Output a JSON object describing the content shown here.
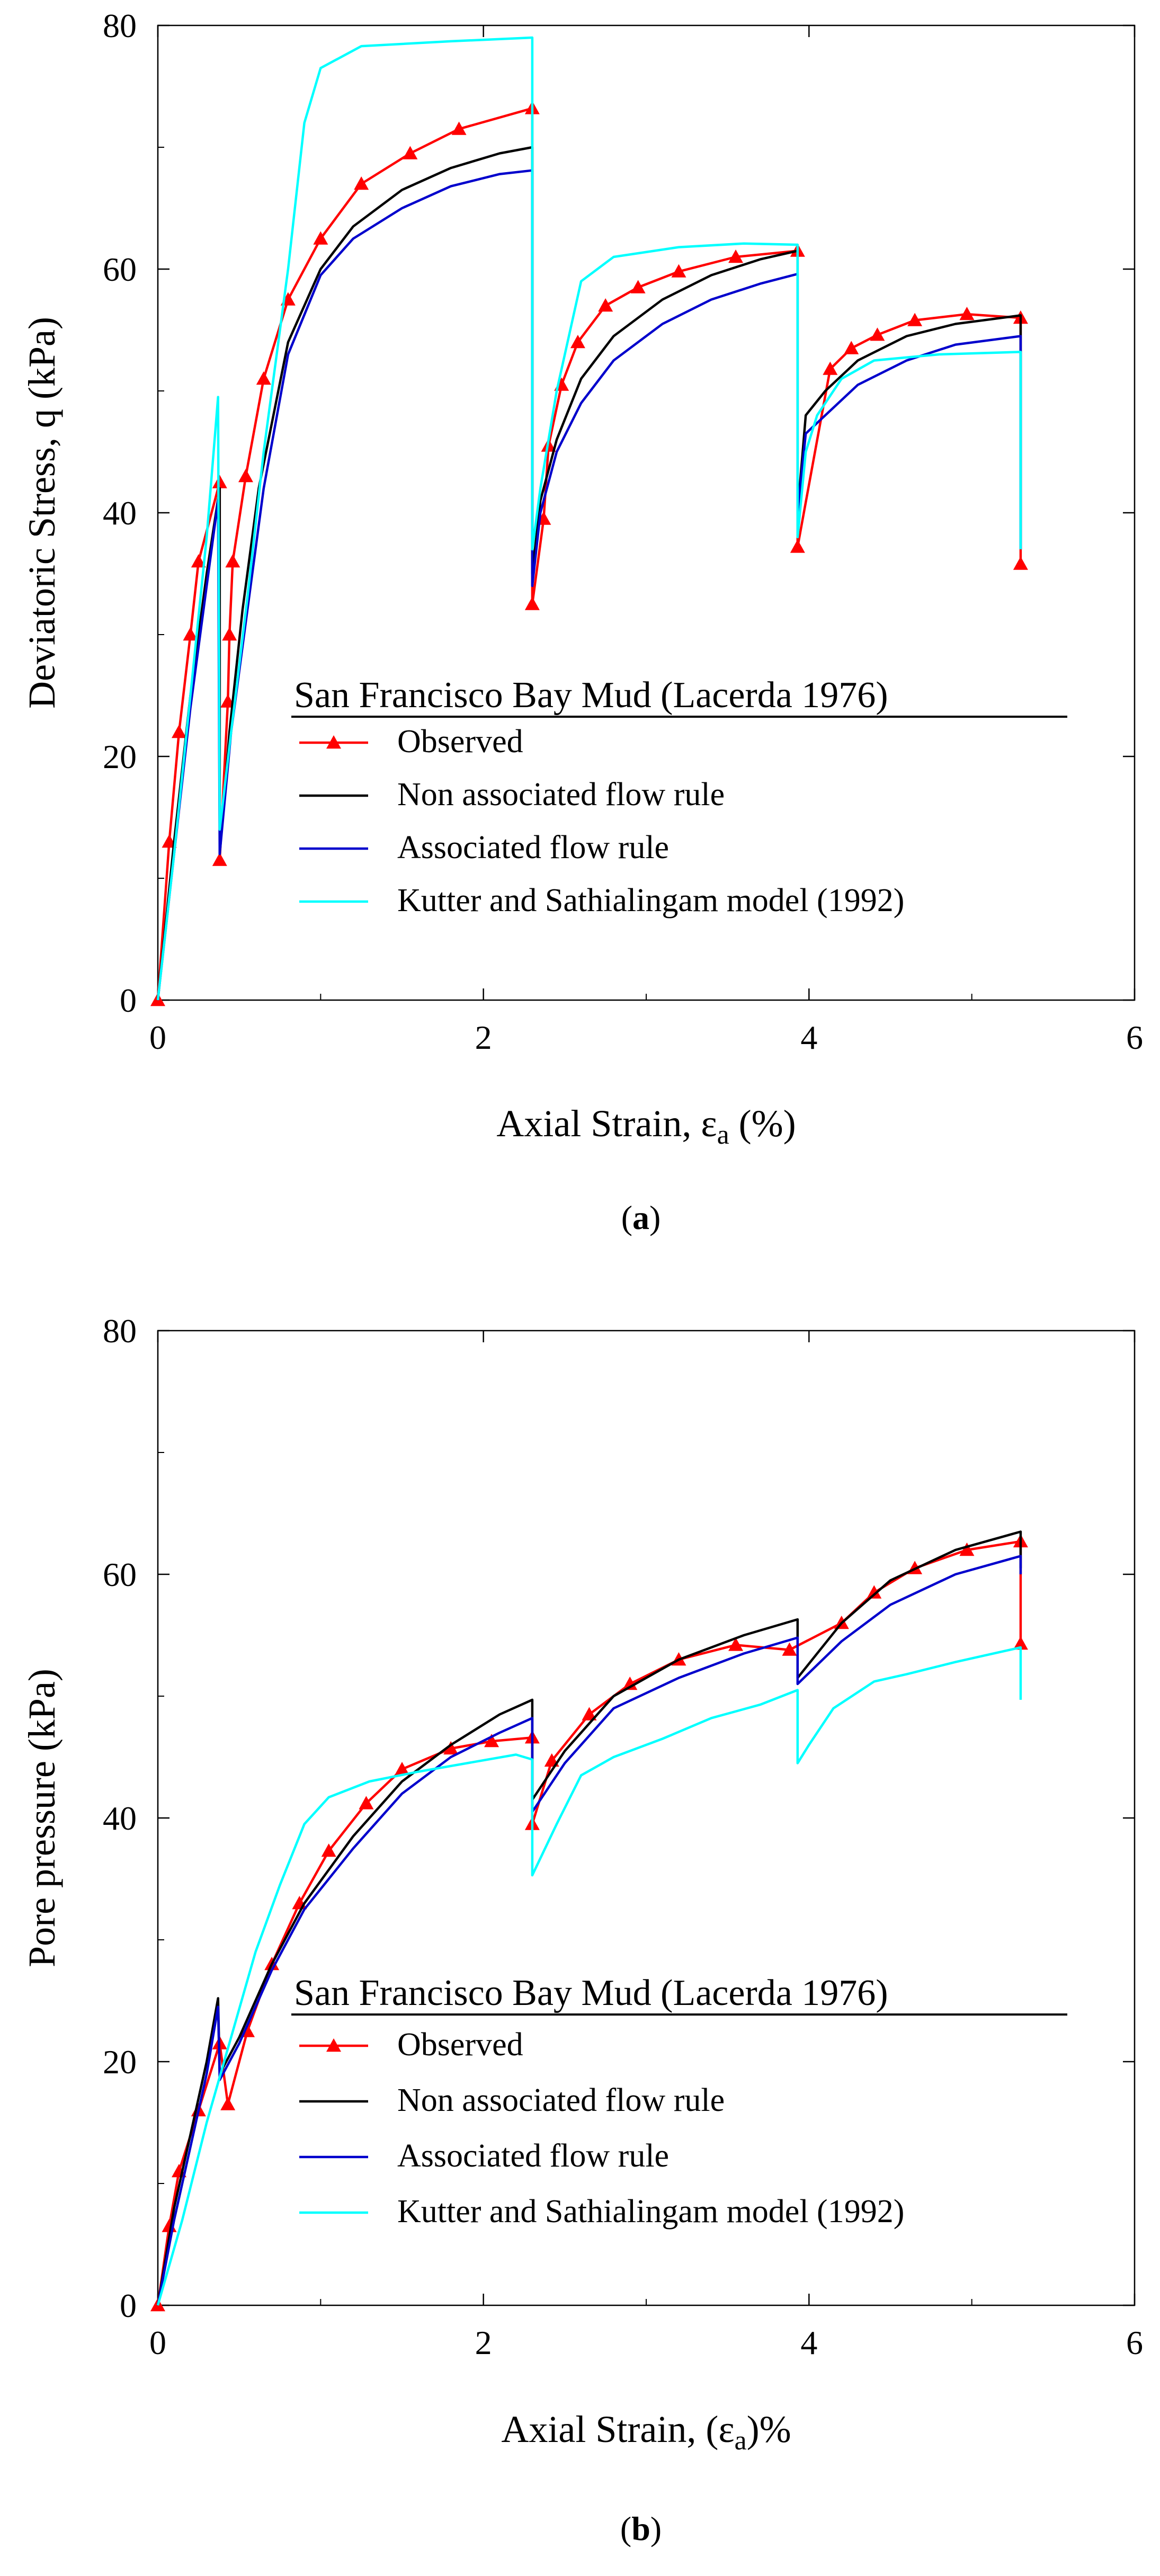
{
  "charts": [
    {
      "id": "a",
      "caption_open": "(",
      "caption_letter": "a",
      "caption_close": ")",
      "ylabel": "Deviatoric Stress, q (kPa)",
      "xlabel_main": "Axial Strain, ε",
      "xlabel_sub": "a",
      "xlabel_tail": " (%)",
      "legend": {
        "title": "San Francisco Bay Mud (Lacerda 1976)",
        "entries": [
          "Observed",
          "Non associated flow rule",
          "Associated flow rule",
          "Kutter and Sathialingam model (1992)"
        ]
      },
      "xticks": [
        "0",
        "2",
        "4",
        "6"
      ],
      "yticks": [
        "0",
        "20",
        "40",
        "60",
        "80"
      ]
    },
    {
      "id": "b",
      "caption_open": "(",
      "caption_letter": "b",
      "caption_close": ")",
      "ylabel": "Pore pressure (kPa)",
      "xlabel_main": "Axial Strain, (ε",
      "xlabel_sub": "a",
      "xlabel_tail": ")%",
      "legend": {
        "title": "San Francisco Bay Mud (Lacerda 1976)",
        "entries": [
          "Observed",
          "Non associated flow rule",
          "Associated flow rule",
          "Kutter and Sathialingam model (1992)"
        ]
      },
      "xticks": [
        "0",
        "2",
        "4",
        "6"
      ],
      "yticks": [
        "0",
        "20",
        "40",
        "60",
        "80"
      ]
    }
  ],
  "chart_data": [
    {
      "type": "line",
      "title": "",
      "xlabel": "Axial Strain, εa (%)",
      "ylabel": "Deviatoric Stress, q (kPa)",
      "xlim": [
        0,
        6
      ],
      "ylim": [
        0,
        80
      ],
      "colors": {
        "observed": "#ff0000",
        "nonassoc": "#000000",
        "assoc": "#0000cc",
        "kutter": "#00ffff"
      },
      "series": [
        {
          "name": "Observed",
          "key": "observed",
          "markers": true,
          "points": [
            [
              0,
              0
            ],
            [
              0.07,
              13
            ],
            [
              0.13,
              22
            ],
            [
              0.2,
              30
            ],
            [
              0.25,
              36
            ],
            [
              0.38,
              42.5
            ],
            [
              0.38,
              11.5
            ],
            [
              0.43,
              24.5
            ],
            [
              0.44,
              30
            ],
            [
              0.46,
              36
            ],
            [
              0.54,
              43
            ],
            [
              0.65,
              51
            ],
            [
              0.8,
              57.5
            ],
            [
              1.0,
              62.5
            ],
            [
              1.25,
              67
            ],
            [
              1.55,
              69.5
            ],
            [
              1.85,
              71.5
            ],
            [
              2.3,
              73.2
            ],
            [
              2.3,
              32.5
            ],
            [
              2.37,
              39.5
            ],
            [
              2.4,
              45.5
            ],
            [
              2.48,
              50.5
            ],
            [
              2.58,
              54
            ],
            [
              2.75,
              57
            ],
            [
              2.95,
              58.5
            ],
            [
              3.2,
              59.8
            ],
            [
              3.55,
              61
            ],
            [
              3.93,
              61.5
            ],
            [
              3.93,
              37.2
            ],
            [
              4.13,
              51.8
            ],
            [
              4.26,
              53.5
            ],
            [
              4.42,
              54.6
            ],
            [
              4.65,
              55.8
            ],
            [
              4.97,
              56.3
            ],
            [
              5.3,
              56
            ],
            [
              5.3,
              35.8
            ]
          ]
        },
        {
          "name": "Non associated flow rule",
          "key": "nonassoc",
          "markers": false,
          "points": [
            [
              0,
              0
            ],
            [
              0.1,
              13
            ],
            [
              0.2,
              25
            ],
            [
              0.3,
              35
            ],
            [
              0.38,
              42
            ],
            [
              0.38,
              12
            ],
            [
              0.44,
              22
            ],
            [
              0.52,
              32
            ],
            [
              0.62,
              42
            ],
            [
              0.8,
              54
            ],
            [
              1.0,
              60
            ],
            [
              1.2,
              63.5
            ],
            [
              1.5,
              66.5
            ],
            [
              1.8,
              68.3
            ],
            [
              2.1,
              69.5
            ],
            [
              2.3,
              70
            ],
            [
              2.3,
              35
            ],
            [
              2.35,
              41
            ],
            [
              2.45,
              46
            ],
            [
              2.6,
              51
            ],
            [
              2.8,
              54.5
            ],
            [
              3.1,
              57.5
            ],
            [
              3.4,
              59.5
            ],
            [
              3.7,
              60.8
            ],
            [
              3.93,
              61.5
            ],
            [
              3.93,
              40
            ],
            [
              3.98,
              48
            ],
            [
              4.1,
              50
            ],
            [
              4.3,
              52.5
            ],
            [
              4.6,
              54.5
            ],
            [
              4.9,
              55.5
            ],
            [
              5.3,
              56.2
            ],
            [
              5.3,
              37
            ]
          ]
        },
        {
          "name": "Associated flow rule",
          "key": "assoc",
          "markers": false,
          "points": [
            [
              0,
              0
            ],
            [
              0.1,
              12
            ],
            [
              0.2,
              24
            ],
            [
              0.3,
              34
            ],
            [
              0.37,
              41
            ],
            [
              0.38,
              12
            ],
            [
              0.45,
              22
            ],
            [
              0.55,
              32
            ],
            [
              0.65,
              42
            ],
            [
              0.8,
              53
            ],
            [
              1.0,
              59.5
            ],
            [
              1.2,
              62.5
            ],
            [
              1.5,
              65
            ],
            [
              1.8,
              66.8
            ],
            [
              2.1,
              67.8
            ],
            [
              2.3,
              68.1
            ],
            [
              2.3,
              34
            ],
            [
              2.35,
              40
            ],
            [
              2.45,
              45
            ],
            [
              2.6,
              49
            ],
            [
              2.8,
              52.5
            ],
            [
              3.1,
              55.5
            ],
            [
              3.4,
              57.5
            ],
            [
              3.7,
              58.8
            ],
            [
              3.93,
              59.6
            ],
            [
              3.93,
              40
            ],
            [
              3.98,
              46.5
            ],
            [
              4.1,
              48
            ],
            [
              4.3,
              50.5
            ],
            [
              4.6,
              52.5
            ],
            [
              4.9,
              53.8
            ],
            [
              5.3,
              54.5
            ],
            [
              5.3,
              37
            ]
          ]
        },
        {
          "name": "Kutter and Sathialingam model (1992)",
          "key": "kutter",
          "markers": false,
          "points": [
            [
              0,
              0
            ],
            [
              0.1,
              12
            ],
            [
              0.2,
              25
            ],
            [
              0.3,
              38
            ],
            [
              0.37,
              49.5
            ],
            [
              0.38,
              14
            ],
            [
              0.45,
              22
            ],
            [
              0.55,
              33
            ],
            [
              0.65,
              45
            ],
            [
              0.8,
              60
            ],
            [
              0.9,
              72
            ],
            [
              1.0,
              76.5
            ],
            [
              1.25,
              78.3
            ],
            [
              1.8,
              78.7
            ],
            [
              2.3,
              79
            ],
            [
              2.3,
              37
            ],
            [
              2.35,
              42
            ],
            [
              2.45,
              50
            ],
            [
              2.6,
              59
            ],
            [
              2.8,
              61
            ],
            [
              3.2,
              61.8
            ],
            [
              3.6,
              62.1
            ],
            [
              3.93,
              62
            ],
            [
              3.93,
              38
            ],
            [
              3.98,
              45
            ],
            [
              4.05,
              48
            ],
            [
              4.2,
              51
            ],
            [
              4.4,
              52.5
            ],
            [
              4.8,
              53
            ],
            [
              5.3,
              53.2
            ],
            [
              5.3,
              37
            ]
          ]
        }
      ]
    },
    {
      "type": "line",
      "title": "",
      "xlabel": "Axial Strain, (εa)%",
      "ylabel": "Pore pressure (kPa)",
      "xlim": [
        0,
        6
      ],
      "ylim": [
        0,
        80
      ],
      "colors": {
        "observed": "#ff0000",
        "nonassoc": "#000000",
        "assoc": "#0000cc",
        "kutter": "#00ffff"
      },
      "series": [
        {
          "name": "Observed",
          "key": "observed",
          "markers": true,
          "points": [
            [
              0,
              0
            ],
            [
              0.07,
              6.5
            ],
            [
              0.13,
              11
            ],
            [
              0.25,
              16
            ],
            [
              0.38,
              21.5
            ],
            [
              0.43,
              16.5
            ],
            [
              0.55,
              22.5
            ],
            [
              0.7,
              28
            ],
            [
              0.87,
              33
            ],
            [
              1.05,
              37.3
            ],
            [
              1.28,
              41.2
            ],
            [
              1.5,
              44
            ],
            [
              1.8,
              45.7
            ],
            [
              2.05,
              46.3
            ],
            [
              2.3,
              46.6
            ],
            [
              2.3,
              39.5
            ],
            [
              2.42,
              44.7
            ],
            [
              2.65,
              48.5
            ],
            [
              2.9,
              51
            ],
            [
              3.2,
              53
            ],
            [
              3.55,
              54.2
            ],
            [
              3.88,
              53.8
            ],
            [
              4.2,
              56
            ],
            [
              4.4,
              58.5
            ],
            [
              4.65,
              60.5
            ],
            [
              4.97,
              62
            ],
            [
              5.3,
              62.7
            ],
            [
              5.3,
              54.3
            ]
          ]
        },
        {
          "name": "Non associated flow rule",
          "key": "nonassoc",
          "markers": false,
          "points": [
            [
              0,
              0
            ],
            [
              0.1,
              8
            ],
            [
              0.2,
              14
            ],
            [
              0.3,
              20
            ],
            [
              0.37,
              25.2
            ],
            [
              0.38,
              19
            ],
            [
              0.5,
              22
            ],
            [
              0.7,
              28
            ],
            [
              0.9,
              33
            ],
            [
              1.2,
              38.5
            ],
            [
              1.5,
              43
            ],
            [
              1.8,
              46
            ],
            [
              2.1,
              48.5
            ],
            [
              2.3,
              49.7
            ],
            [
              2.3,
              41.5
            ],
            [
              2.5,
              45.5
            ],
            [
              2.8,
              50
            ],
            [
              3.2,
              53
            ],
            [
              3.6,
              55
            ],
            [
              3.93,
              56.3
            ],
            [
              3.93,
              51.5
            ],
            [
              4.2,
              56
            ],
            [
              4.5,
              59.5
            ],
            [
              4.9,
              62
            ],
            [
              5.3,
              63.5
            ],
            [
              5.3,
              60.5
            ]
          ]
        },
        {
          "name": "Associated flow rule",
          "key": "assoc",
          "markers": false,
          "points": [
            [
              0,
              0
            ],
            [
              0.1,
              7
            ],
            [
              0.2,
              13
            ],
            [
              0.3,
              19
            ],
            [
              0.37,
              24.5
            ],
            [
              0.38,
              18.5
            ],
            [
              0.5,
              21.5
            ],
            [
              0.7,
              27.5
            ],
            [
              0.9,
              32.5
            ],
            [
              1.2,
              37.5
            ],
            [
              1.5,
              42
            ],
            [
              1.8,
              45
            ],
            [
              2.1,
              47
            ],
            [
              2.3,
              48.2
            ],
            [
              2.3,
              40.5
            ],
            [
              2.5,
              44.5
            ],
            [
              2.8,
              49
            ],
            [
              3.2,
              51.5
            ],
            [
              3.6,
              53.5
            ],
            [
              3.93,
              54.8
            ],
            [
              3.93,
              51
            ],
            [
              4.2,
              54.5
            ],
            [
              4.5,
              57.5
            ],
            [
              4.9,
              60
            ],
            [
              5.3,
              61.5
            ],
            [
              5.3,
              60
            ]
          ]
        },
        {
          "name": "Kutter and Sathialingam model (1992)",
          "key": "kutter",
          "markers": false,
          "points": [
            [
              0,
              0
            ],
            [
              0.15,
              7
            ],
            [
              0.3,
              15
            ],
            [
              0.45,
              22
            ],
            [
              0.6,
              29
            ],
            [
              0.75,
              34.5
            ],
            [
              0.9,
              39.5
            ],
            [
              1.05,
              41.7
            ],
            [
              1.3,
              43
            ],
            [
              1.6,
              43.8
            ],
            [
              1.9,
              44.5
            ],
            [
              2.2,
              45.2
            ],
            [
              2.3,
              44.8
            ],
            [
              2.3,
              35.3
            ],
            [
              2.45,
              39.5
            ],
            [
              2.6,
              43.5
            ],
            [
              2.8,
              45
            ],
            [
              3.1,
              46.5
            ],
            [
              3.4,
              48.2
            ],
            [
              3.7,
              49.3
            ],
            [
              3.93,
              50.5
            ],
            [
              3.93,
              44.5
            ],
            [
              4.0,
              46
            ],
            [
              4.15,
              49
            ],
            [
              4.4,
              51.2
            ],
            [
              4.6,
              51.8
            ],
            [
              4.9,
              52.8
            ],
            [
              5.3,
              54
            ],
            [
              5.3,
              49.7
            ]
          ]
        }
      ]
    }
  ]
}
